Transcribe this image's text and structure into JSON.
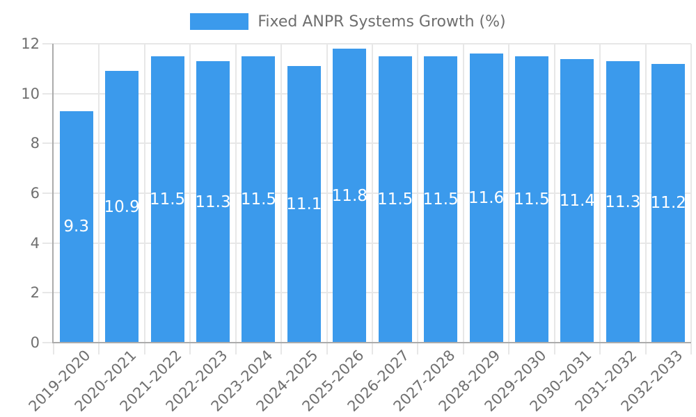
{
  "legend": {
    "label": "Fixed ANPR Systems Growth (%)"
  },
  "chart_data": {
    "type": "bar",
    "title": "Fixed ANPR Systems Growth (%)",
    "categories": [
      "2019-2020",
      "2020-2021",
      "2021-2022",
      "2022-2023",
      "2023-2024",
      "2024-2025",
      "2025-2026",
      "2026-2027",
      "2027-2028",
      "2028-2029",
      "2029-2030",
      "2030-2031",
      "2031-2032",
      "2032-2033"
    ],
    "values": [
      9.3,
      10.9,
      11.5,
      11.3,
      11.5,
      11.1,
      11.8,
      11.5,
      11.5,
      11.6,
      11.5,
      11.4,
      11.3,
      11.2
    ],
    "xlabel": "",
    "ylabel": "",
    "ylim": [
      0,
      12
    ],
    "yticks": [
      0,
      2,
      4,
      6,
      8,
      10,
      12
    ],
    "grid": true,
    "legend_position": "top",
    "value_labels": "inside-center"
  },
  "colors": {
    "bar": "#3b9aec",
    "grid": "#e7e7e7",
    "axis": "#ababab",
    "tick_text": "#6f6f6f",
    "value_text": "#ffffff",
    "background": "#ffffff"
  }
}
